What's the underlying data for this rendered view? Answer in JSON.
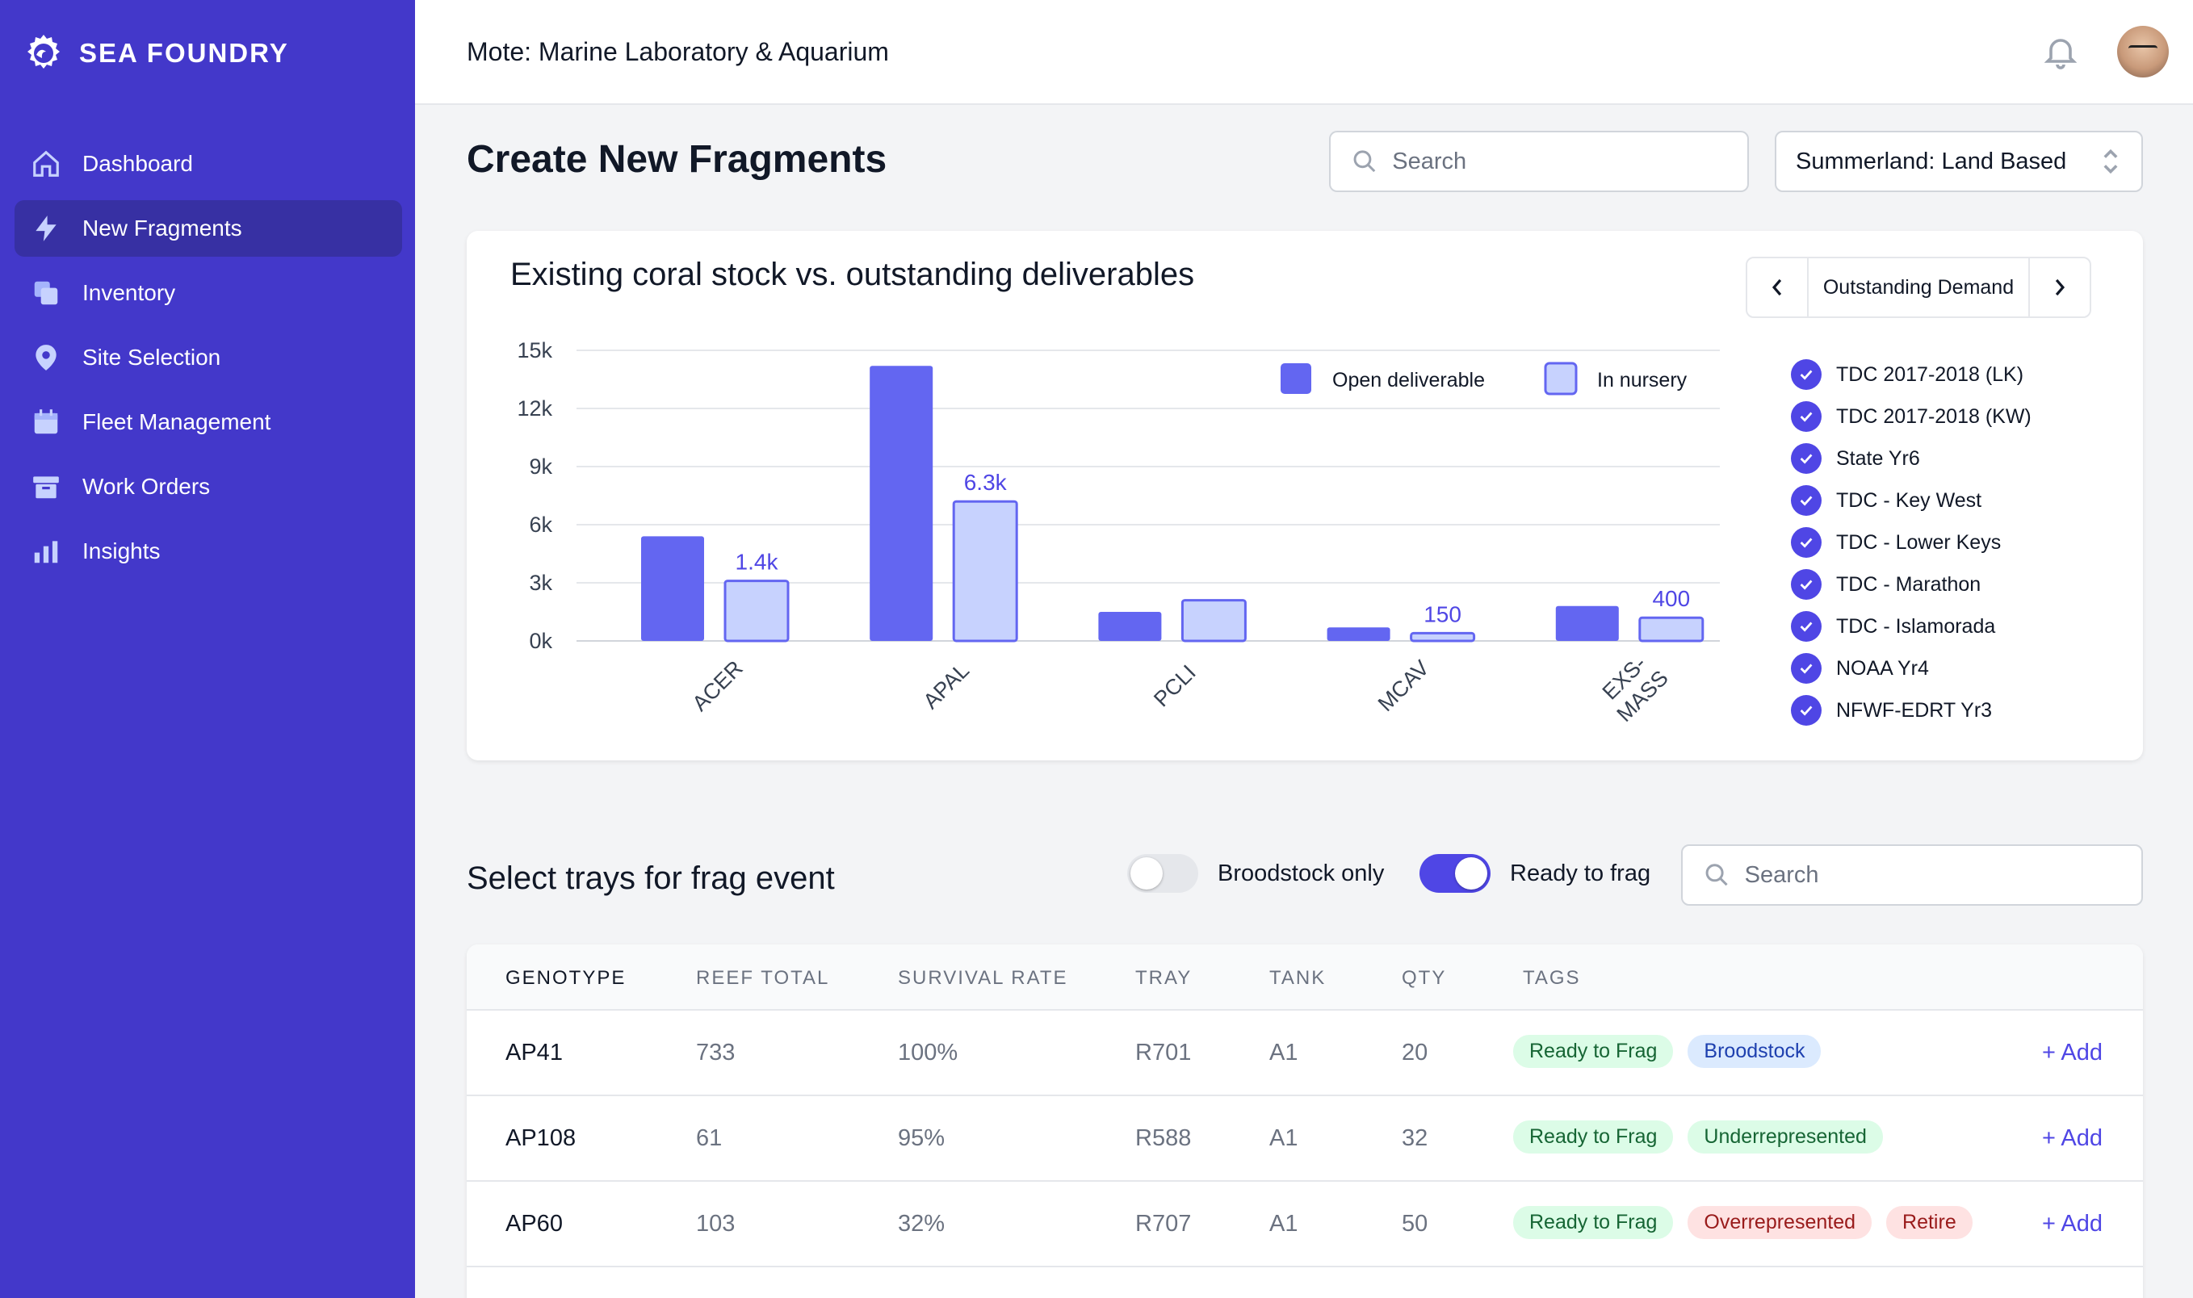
{
  "brand": {
    "name": "SEA FOUNDRY"
  },
  "sidebar": {
    "items": [
      {
        "label": "Dashboard",
        "icon": "home-icon"
      },
      {
        "label": "New Fragments",
        "icon": "bolt-icon",
        "active": true
      },
      {
        "label": "Inventory",
        "icon": "copy-icon"
      },
      {
        "label": "Site Selection",
        "icon": "location-pin-icon"
      },
      {
        "label": "Fleet Management",
        "icon": "calendar-icon"
      },
      {
        "label": "Work Orders",
        "icon": "archive-icon"
      },
      {
        "label": "Insights",
        "icon": "bar-chart-icon"
      }
    ]
  },
  "header": {
    "org": "Mote: Marine Laboratory & Aquarium"
  },
  "page": {
    "title": "Create New Fragments",
    "search_placeholder": "Search",
    "site_select": "Summerland: Land Based"
  },
  "chart_card": {
    "title": "Existing coral stock vs. outstanding deliverables",
    "pager_label": "Outstanding Demand",
    "demand_list": [
      "TDC 2017-2018 (LK)",
      "TDC 2017-2018 (KW)",
      "State Yr6",
      "TDC - Key West",
      "TDC - Lower Keys",
      "TDC - Marathon",
      "TDC - Islamorada",
      "NOAA Yr4",
      "NFWF-EDRT Yr3"
    ]
  },
  "chart_data": {
    "type": "bar",
    "categories": [
      "ACER",
      "APAL",
      "PCLI",
      "MCAV",
      "EXS-MASS"
    ],
    "series": [
      {
        "name": "Open deliverable",
        "values": [
          5400,
          14200,
          1500,
          700,
          1800
        ],
        "color": "#6366f1"
      },
      {
        "name": "In nursery",
        "values": [
          3100,
          7200,
          2100,
          400,
          1200
        ],
        "color": "#c7d2fe"
      }
    ],
    "data_labels": [
      "1.4k",
      "6.3k",
      "",
      "150",
      "400"
    ],
    "y_ticks": [
      "0k",
      "3k",
      "6k",
      "9k",
      "12k",
      "15k"
    ],
    "ylim": [
      0,
      15000
    ],
    "grid": true,
    "legend": "top-right"
  },
  "trays": {
    "title": "Select trays for frag event",
    "toggle_broodstock": "Broodstock only",
    "toggle_ready": "Ready to frag",
    "search_placeholder": "Search",
    "columns": [
      "GENOTYPE",
      "REEF TOTAL",
      "SURVIVAL RATE",
      "TRAY",
      "TANK",
      "QTY",
      "TAGS"
    ],
    "rows": [
      {
        "genotype": "AP41",
        "reef_total": "733",
        "survival": "100%",
        "tray": "R701",
        "tank": "A1",
        "qty": "20",
        "tags": [
          {
            "label": "Ready to Frag",
            "color": "green"
          },
          {
            "label": "Broodstock",
            "color": "blue"
          }
        ],
        "action": "+ Add"
      },
      {
        "genotype": "AP108",
        "reef_total": "61",
        "survival": "95%",
        "tray": "R588",
        "tank": "A1",
        "qty": "32",
        "tags": [
          {
            "label": "Ready to Frag",
            "color": "green"
          },
          {
            "label": "Underrepresented",
            "color": "green"
          }
        ],
        "action": "+ Add"
      },
      {
        "genotype": "AP60",
        "reef_total": "103",
        "survival": "32%",
        "tray": "R707",
        "tank": "A1",
        "qty": "50",
        "tags": [
          {
            "label": "Ready to Frag",
            "color": "green"
          },
          {
            "label": "Overrepresented",
            "color": "red"
          },
          {
            "label": "Retire",
            "color": "red"
          }
        ],
        "action": "+ Add"
      }
    ]
  }
}
